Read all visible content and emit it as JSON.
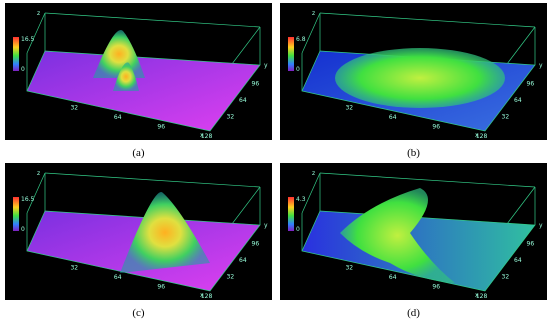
{
  "panels": [
    {
      "caption": "(a)",
      "colorbar": [
        "16.5",
        "0"
      ],
      "xticks": [
        "32",
        "64",
        "96",
        "128"
      ],
      "yticks": [
        "32",
        "64",
        "96"
      ],
      "x_label": "x",
      "y_label": "y",
      "z_label": "z"
    },
    {
      "caption": "(b)",
      "colorbar": [
        "6.8",
        "0"
      ],
      "xticks": [
        "32",
        "64",
        "96",
        "128"
      ],
      "yticks": [
        "32",
        "64",
        "96"
      ],
      "x_label": "x",
      "y_label": "y",
      "z_label": "z"
    },
    {
      "caption": "(c)",
      "colorbar": [
        "16.5",
        "0"
      ],
      "xticks": [
        "32",
        "64",
        "96",
        "128"
      ],
      "yticks": [
        "32",
        "64",
        "96"
      ],
      "x_label": "x",
      "y_label": "y",
      "z_label": "z"
    },
    {
      "caption": "(d)",
      "colorbar": [
        "4.3",
        "0"
      ],
      "xticks": [
        "32",
        "64",
        "96",
        "128"
      ],
      "yticks": [
        "32",
        "64",
        "96"
      ],
      "x_label": "x",
      "y_label": "y",
      "z_label": "z"
    }
  ]
}
